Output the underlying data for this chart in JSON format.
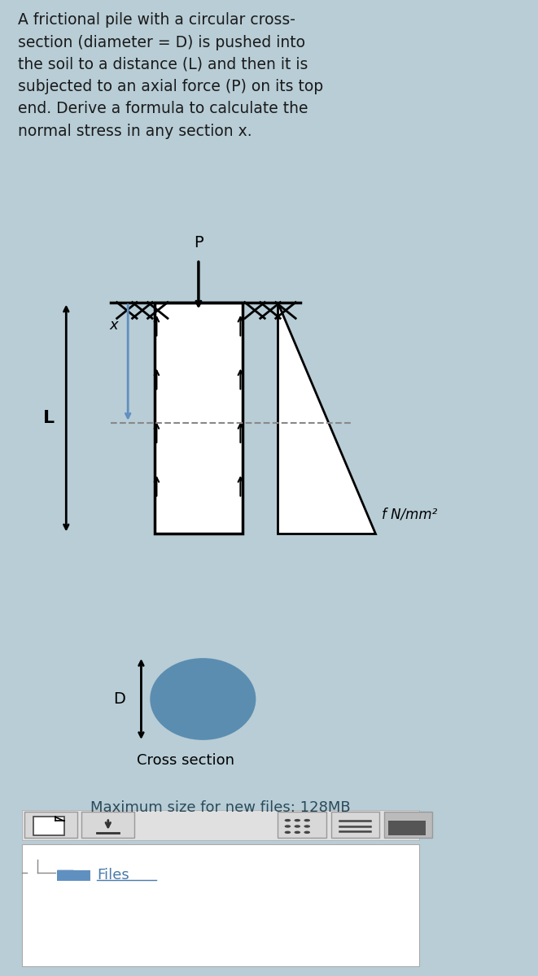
{
  "bg_top": "#c8dde6",
  "bg_diagram": "#ffffff",
  "bg_bottom": "#c8dde6",
  "bg_right_strip": "#d8e8f0",
  "text_color": "#1a1a1a",
  "text_problem": "A frictional pile with a circular cross-\nsection (diameter = D) is pushed into\nthe soil to a distance (L) and then it is\nsubjected to an axial force (P) on its top\nend. Derive a formula to calculate the\nnormal stress in any section x.",
  "circle_color": "#5b8db0",
  "label_L": "L",
  "label_P": "P",
  "label_x": "x",
  "label_D": "D",
  "label_cross": "Cross section",
  "label_f": "f N/mm²",
  "label_max_files": "Maximum size for new files: 128MB",
  "label_files": "Files"
}
